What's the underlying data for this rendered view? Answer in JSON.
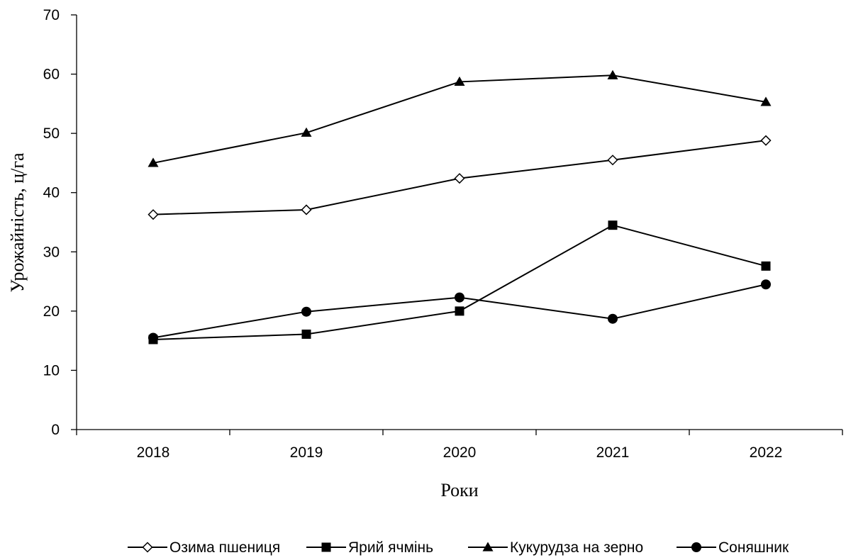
{
  "chart_data": {
    "type": "line",
    "title": "",
    "xlabel": "Роки",
    "ylabel": "Урожайність, ц/га",
    "categories": [
      "2018",
      "2019",
      "2020",
      "2021",
      "2022"
    ],
    "ylim": [
      0,
      70
    ],
    "yticks": [
      0,
      10,
      20,
      30,
      40,
      50,
      60,
      70
    ],
    "grid": false,
    "legend_position": "bottom",
    "series": [
      {
        "name": "Озима пшениця",
        "marker": "diamond-open",
        "values": [
          36.3,
          37.1,
          42.4,
          45.5,
          48.8
        ]
      },
      {
        "name": "Ярий ячмінь",
        "marker": "square",
        "values": [
          15.2,
          16.1,
          20.0,
          34.5,
          27.6
        ]
      },
      {
        "name": "Кукурудза на зерно",
        "marker": "triangle",
        "values": [
          45.0,
          50.1,
          58.7,
          59.8,
          55.3
        ]
      },
      {
        "name": "Соняшник",
        "marker": "circle",
        "values": [
          15.5,
          19.9,
          22.3,
          18.7,
          24.5
        ]
      }
    ],
    "line_color": "#000000"
  }
}
